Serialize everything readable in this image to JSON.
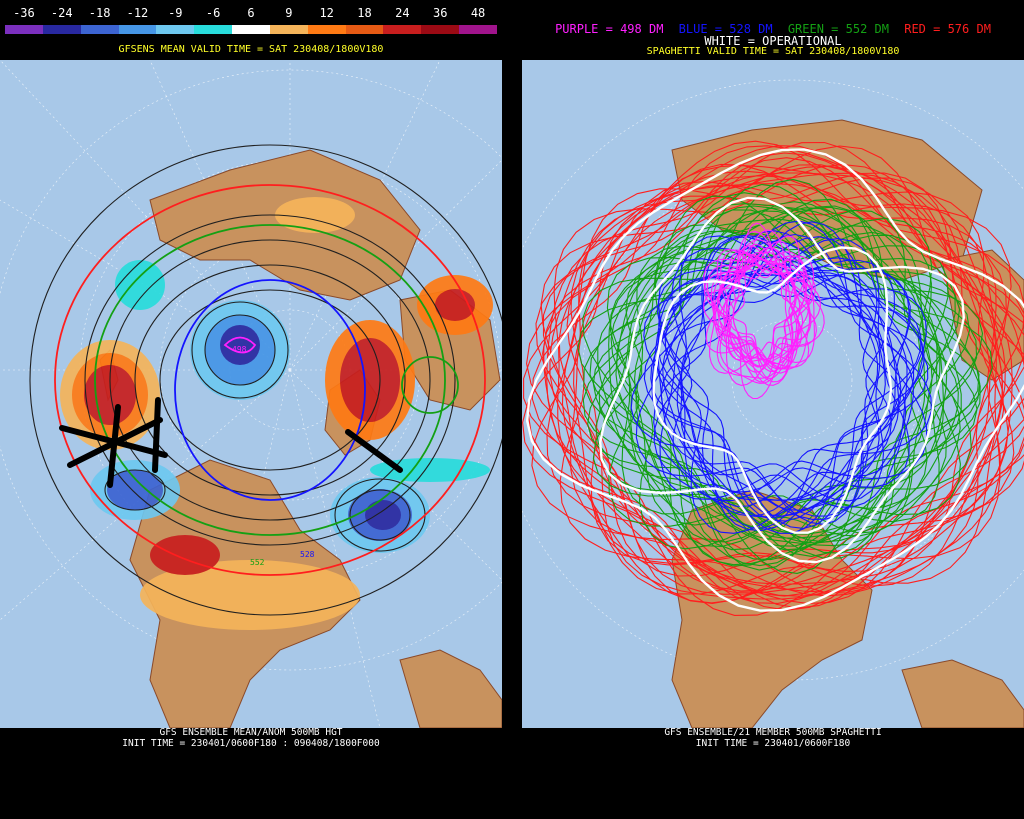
{
  "left": {
    "colorbar": {
      "labels": [
        "-36",
        "-24",
        "-18",
        "-12",
        "-9",
        "-6",
        "6",
        "9",
        "12",
        "18",
        "24",
        "36",
        "48"
      ],
      "colors": [
        "#7b2fbe",
        "#2828a0",
        "#3c64d2",
        "#4696e6",
        "#6ec8f0",
        "#28dcdc",
        "#ffffff",
        "#f5b45a",
        "#ff7a14",
        "#e65a14",
        "#c81e1e",
        "#9b0a14",
        "#a0148c"
      ]
    },
    "valid_time": "GFSENS MEAN VALID TIME = SAT 230408/1800V180",
    "footer_line1": "GFS ENSEMBLE MEAN/ANOM 500MB HGT",
    "footer_line2": "INIT TIME = 230401/0600F180 : 090408/1800F000",
    "contour_labels": [
      "498",
      "528",
      "552"
    ]
  },
  "right": {
    "legend": {
      "purple": "PURPLE = 498 DM",
      "blue": "BLUE = 528 DM",
      "green": "GREEN = 552 DM",
      "red": "RED = 576 DM",
      "white": "WHITE = OPERATIONAL"
    },
    "valid_time": "SPAGHETTI VALID TIME = SAT 230408/1800V180",
    "footer_line1": "GFS ENSEMBLE/21 MEMBER 500MB SPAGHETTI",
    "footer_line2": "INIT TIME = 230401/0600F180"
  },
  "colors": {
    "ocean": "#a8c8e8",
    "land": "#c8925e",
    "purple": "#ff20ff",
    "blue": "#1414ff",
    "green": "#14a014",
    "red": "#ff1e1e",
    "white": "#ffffff",
    "yellow": "#ffff28"
  }
}
